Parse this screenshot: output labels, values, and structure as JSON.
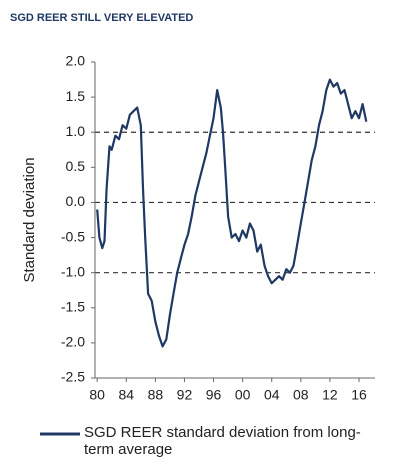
{
  "chart_data": {
    "type": "line",
    "title": "SGD REER STILL VERY ELEVATED",
    "y_label": "Standard deviation",
    "x": [
      1980.0,
      1980.3,
      1980.7,
      1981.0,
      1981.3,
      1981.7,
      1982.0,
      1982.5,
      1983.0,
      1983.5,
      1984.0,
      1984.5,
      1985.0,
      1985.5,
      1986.0,
      1986.3,
      1986.6,
      1987.0,
      1987.5,
      1988.0,
      1988.5,
      1989.0,
      1989.5,
      1990.0,
      1990.5,
      1991.0,
      1991.5,
      1992.0,
      1992.5,
      1993.0,
      1993.5,
      1994.0,
      1994.5,
      1995.0,
      1995.5,
      1996.0,
      1996.5,
      1997.0,
      1997.3,
      1997.6,
      1998.0,
      1998.5,
      1999.0,
      1999.5,
      2000.0,
      2000.5,
      2001.0,
      2001.5,
      2002.0,
      2002.5,
      2003.0,
      2003.5,
      2004.0,
      2004.5,
      2005.0,
      2005.5,
      2006.0,
      2006.5,
      2007.0,
      2007.5,
      2008.0,
      2008.5,
      2009.0,
      2009.5,
      2010.0,
      2010.5,
      2011.0,
      2011.5,
      2012.0,
      2012.5,
      2013.0,
      2013.5,
      2014.0,
      2014.5,
      2015.0,
      2015.5,
      2016.0,
      2016.5,
      2017.0
    ],
    "series": [
      {
        "name": "SGD REER standard deviation from long-term average",
        "color": "#1f3864",
        "values": [
          -0.1,
          -0.5,
          -0.65,
          -0.55,
          0.2,
          0.8,
          0.75,
          0.95,
          0.9,
          1.1,
          1.05,
          1.25,
          1.3,
          1.35,
          1.1,
          0.2,
          -0.5,
          -1.3,
          -1.4,
          -1.7,
          -1.9,
          -2.05,
          -1.95,
          -1.6,
          -1.3,
          -1.0,
          -0.8,
          -0.6,
          -0.45,
          -0.2,
          0.1,
          0.3,
          0.5,
          0.7,
          0.95,
          1.2,
          1.6,
          1.35,
          1.0,
          0.5,
          -0.2,
          -0.5,
          -0.45,
          -0.55,
          -0.4,
          -0.5,
          -0.3,
          -0.4,
          -0.7,
          -0.6,
          -0.9,
          -1.05,
          -1.15,
          -1.1,
          -1.05,
          -1.1,
          -0.95,
          -1.0,
          -0.9,
          -0.6,
          -0.3,
          0.0,
          0.3,
          0.6,
          0.8,
          1.1,
          1.3,
          1.6,
          1.75,
          1.65,
          1.7,
          1.55,
          1.6,
          1.4,
          1.2,
          1.3,
          1.2,
          1.4,
          1.15
        ]
      }
    ],
    "xlim": [
      1979.7,
      2018.2
    ],
    "xticks": [
      {
        "value": 1980,
        "label": "80"
      },
      {
        "value": 1984,
        "label": "84"
      },
      {
        "value": 1988,
        "label": "88"
      },
      {
        "value": 1992,
        "label": "92"
      },
      {
        "value": 1996,
        "label": "96"
      },
      {
        "value": 2000,
        "label": "00"
      },
      {
        "value": 2004,
        "label": "04"
      },
      {
        "value": 2008,
        "label": "08"
      },
      {
        "value": 2012,
        "label": "12"
      },
      {
        "value": 2016,
        "label": "16"
      }
    ],
    "ylim": [
      -2.5,
      2.0
    ],
    "yticks": [
      {
        "value": 2,
        "label": "2.0"
      },
      {
        "value": 1.5,
        "label": "1.5"
      },
      {
        "value": 1,
        "label": "1.0"
      },
      {
        "value": 0.5,
        "label": "0.5"
      },
      {
        "value": 0,
        "label": "0.0"
      },
      {
        "value": -0.5,
        "label": "-0.5"
      },
      {
        "value": -1,
        "label": "-1.0"
      },
      {
        "value": -1.5,
        "label": "-1.5"
      },
      {
        "value": -2,
        "label": "-2.0"
      },
      {
        "value": -2.5,
        "label": "-2.5"
      }
    ],
    "reference_lines": [
      1,
      0,
      -1
    ]
  }
}
